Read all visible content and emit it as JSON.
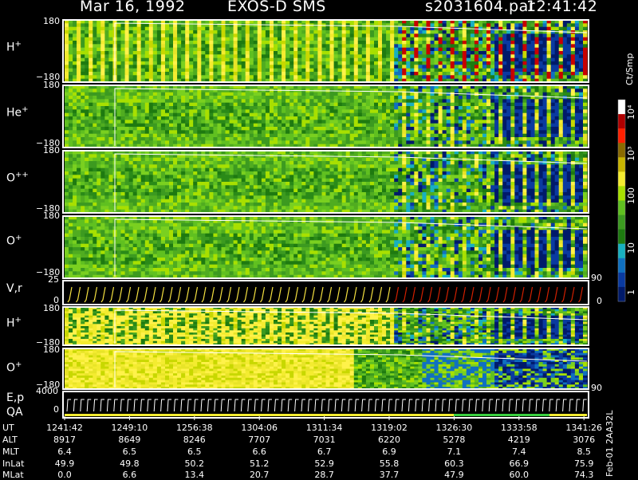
{
  "header": {
    "date": "Mar 16, 1992",
    "instrument": "EXOS-D SMS",
    "file": "s2031604.par",
    "time": "12:41:42"
  },
  "panels": [
    {
      "id": "h",
      "label": "H",
      "sup": "+",
      "ymax": "180",
      "ymin": "−180",
      "kind": "pa"
    },
    {
      "id": "he",
      "label": "He",
      "sup": "+",
      "ymax": "180",
      "ymin": "−180",
      "kind": "pa"
    },
    {
      "id": "opp",
      "label": "O",
      "sup": "++",
      "ymax": "180",
      "ymin": "−180",
      "kind": "pa"
    },
    {
      "id": "op",
      "label": "O",
      "sup": "+",
      "ymax": "180",
      "ymin": "−180",
      "kind": "pa"
    },
    {
      "id": "vr",
      "label": "V,r",
      "sup": "",
      "ymax": "25",
      "ymin": "0",
      "kind": "vr"
    },
    {
      "id": "h2",
      "label": "H",
      "sup": "+",
      "ymax": "180",
      "ymin": "−180",
      "kind": "pa"
    },
    {
      "id": "o2",
      "label": "O",
      "sup": "+",
      "ymax": "180",
      "ymin": "−180",
      "kind": "pa"
    },
    {
      "id": "ep",
      "label": "E,p",
      "sup": "",
      "label2": "QA",
      "ymax": "4000",
      "ymin": "0",
      "kind": "ep"
    }
  ],
  "right_ticks": {
    "a": "90",
    "b": "0",
    "c": "90"
  },
  "colorbar": {
    "unit": "Ct/Smp",
    "labels": [
      "10⁴",
      "10³",
      "100",
      "10",
      "1"
    ],
    "colors": [
      "#ffffff",
      "#b00000",
      "#ff2000",
      "#8a6a00",
      "#c8b400",
      "#f4ec30",
      "#a8e000",
      "#60c020",
      "#3c9a20",
      "#1e7a10",
      "#18b0c0",
      "#1070c0",
      "#0a3aa0",
      "#001a6a"
    ]
  },
  "footer_id": "Feb-01 2AA32L",
  "ephemeris": {
    "row_labels": [
      "UT",
      "ALT",
      "MLT",
      "InLat",
      "MLat"
    ],
    "columns": [
      {
        "UT": "1241:42",
        "ALT": "8917",
        "MLT": "6.4",
        "InLat": "49.9",
        "MLat": "0.0"
      },
      {
        "UT": "1249:10",
        "ALT": "8649",
        "MLT": "6.5",
        "InLat": "49.8",
        "MLat": "6.6"
      },
      {
        "UT": "1256:38",
        "ALT": "8246",
        "MLT": "6.5",
        "InLat": "50.2",
        "MLat": "13.4"
      },
      {
        "UT": "1304:06",
        "ALT": "7707",
        "MLT": "6.6",
        "InLat": "51.2",
        "MLat": "20.7"
      },
      {
        "UT": "1311:34",
        "ALT": "7031",
        "MLT": "6.7",
        "InLat": "52.9",
        "MLat": "28.7"
      },
      {
        "UT": "1319:02",
        "ALT": "6220",
        "MLT": "6.9",
        "InLat": "55.8",
        "MLat": "37.7"
      },
      {
        "UT": "1326:30",
        "ALT": "5278",
        "MLT": "7.1",
        "InLat": "60.3",
        "MLat": "47.9"
      },
      {
        "UT": "1333:58",
        "ALT": "4219",
        "MLT": "7.4",
        "InLat": "66.9",
        "MLat": "60.0"
      },
      {
        "UT": "1341:26",
        "ALT": "3076",
        "MLT": "8.5",
        "InLat": "75.9",
        "MLat": "74.3"
      }
    ]
  },
  "chart_data": {
    "type": "heatmap",
    "title": "Mar 16, 1992   EXOS-D SMS",
    "x_ticks": [
      "1241:42",
      "1249:10",
      "1256:38",
      "1304:06",
      "1311:34",
      "1319:02",
      "1326:30",
      "1333:58",
      "1341:26"
    ],
    "color_scale": "log",
    "color_range": [
      1,
      10000
    ],
    "color_unit": "Ct/Smp",
    "series": [
      {
        "name": "H+",
        "ylim": [
          -180,
          180
        ]
      },
      {
        "name": "He+",
        "ylim": [
          -180,
          180
        ]
      },
      {
        "name": "O++",
        "ylim": [
          -180,
          180
        ]
      },
      {
        "name": "O+",
        "ylim": [
          -180,
          180
        ]
      },
      {
        "name": "V,r",
        "ylim": [
          0,
          25
        ]
      },
      {
        "name": "H+",
        "ylim": [
          -180,
          180
        ]
      },
      {
        "name": "O+",
        "ylim": [
          -180,
          180
        ]
      },
      {
        "name": "E,p",
        "ylim": [
          0,
          4000
        ]
      }
    ]
  }
}
